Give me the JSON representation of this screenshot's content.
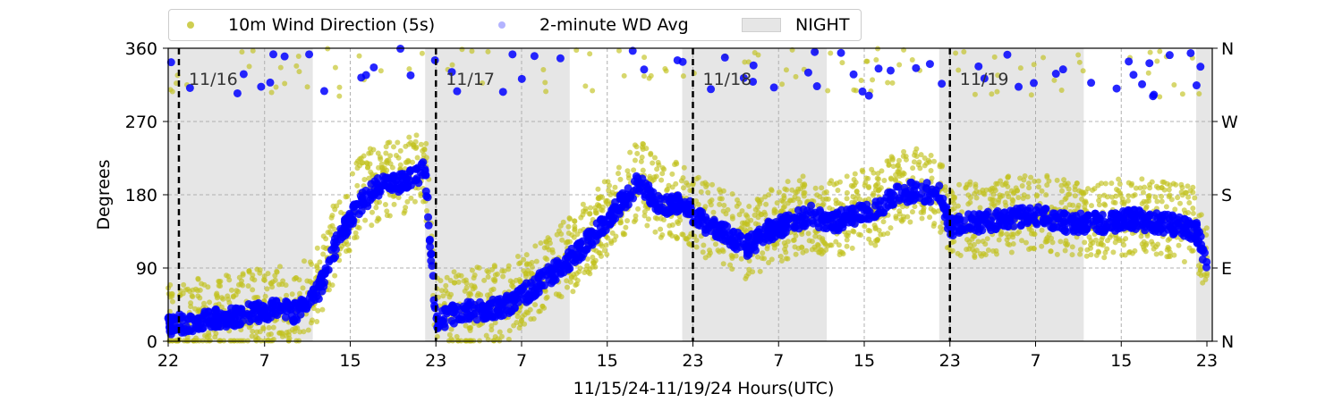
{
  "chart_data": {
    "type": "scatter",
    "title": "",
    "xlabel": "11/15/24-11/19/24  Hours(UTC)",
    "ylabel": "Degrees",
    "ylim": [
      0,
      360
    ],
    "yticks": [
      0,
      90,
      180,
      270,
      360
    ],
    "ytick_labels": [
      "0",
      "90",
      "180",
      "270",
      "360"
    ],
    "right_ticks": [
      0,
      90,
      180,
      270,
      360
    ],
    "right_tick_labels": [
      "N",
      "E",
      "S",
      "W",
      "N"
    ],
    "xlim_hours": [
      0,
      97.5
    ],
    "xticks_hours": [
      0,
      9,
      17,
      25,
      33,
      41,
      49,
      57,
      65,
      73,
      81,
      89,
      97
    ],
    "xtick_labels": [
      "22",
      "7",
      "15",
      "23",
      "7",
      "15",
      "23",
      "7",
      "15",
      "23",
      "7",
      "15",
      "23"
    ],
    "grid": true,
    "legend_placement": "top",
    "day_markers": [
      {
        "hour": 1,
        "label": "11/16"
      },
      {
        "hour": 25,
        "label": "11/17"
      },
      {
        "hour": 49,
        "label": "11/18"
      },
      {
        "hour": 73,
        "label": "11/19"
      }
    ],
    "night_periods": [
      [
        0,
        13.5
      ],
      [
        24,
        37.5
      ],
      [
        48,
        61.5
      ],
      [
        72,
        85.5
      ],
      [
        96,
        97.5
      ]
    ],
    "series": [
      {
        "name": "10m Wind Direction (5s)",
        "color": "#bfbf00",
        "trend": [
          [
            0,
            25
          ],
          [
            3,
            30
          ],
          [
            6,
            35
          ],
          [
            8,
            40
          ],
          [
            10,
            45
          ],
          [
            12,
            40
          ],
          [
            14,
            70
          ],
          [
            16,
            140
          ],
          [
            18,
            180
          ],
          [
            20,
            200
          ],
          [
            22,
            200
          ],
          [
            24,
            215
          ],
          [
            25,
            30
          ],
          [
            27,
            40
          ],
          [
            30,
            45
          ],
          [
            32,
            50
          ],
          [
            34,
            70
          ],
          [
            36,
            90
          ],
          [
            38,
            110
          ],
          [
            40,
            140
          ],
          [
            42,
            170
          ],
          [
            44,
            200
          ],
          [
            46,
            170
          ],
          [
            48,
            175
          ],
          [
            50,
            150
          ],
          [
            52,
            140
          ],
          [
            54,
            120
          ],
          [
            56,
            140
          ],
          [
            58,
            150
          ],
          [
            60,
            160
          ],
          [
            62,
            150
          ],
          [
            64,
            160
          ],
          [
            66,
            165
          ],
          [
            68,
            185
          ],
          [
            70,
            190
          ],
          [
            72,
            185
          ],
          [
            73,
            145
          ],
          [
            75,
            150
          ],
          [
            78,
            155
          ],
          [
            81,
            160
          ],
          [
            84,
            150
          ],
          [
            87,
            150
          ],
          [
            90,
            155
          ],
          [
            93,
            150
          ],
          [
            95,
            145
          ],
          [
            96,
            140
          ],
          [
            97,
            100
          ]
        ]
      },
      {
        "name": "2-minute WD Avg",
        "color": "#0000ff",
        "trend": [
          [
            0,
            20
          ],
          [
            3,
            25
          ],
          [
            6,
            30
          ],
          [
            8,
            35
          ],
          [
            10,
            40
          ],
          [
            12,
            35
          ],
          [
            14,
            60
          ],
          [
            16,
            130
          ],
          [
            18,
            170
          ],
          [
            20,
            195
          ],
          [
            22,
            195
          ],
          [
            24,
            210
          ],
          [
            25,
            25
          ],
          [
            27,
            35
          ],
          [
            30,
            40
          ],
          [
            32,
            45
          ],
          [
            34,
            65
          ],
          [
            36,
            85
          ],
          [
            38,
            105
          ],
          [
            40,
            135
          ],
          [
            42,
            165
          ],
          [
            44,
            195
          ],
          [
            46,
            165
          ],
          [
            48,
            170
          ],
          [
            50,
            145
          ],
          [
            52,
            135
          ],
          [
            54,
            115
          ],
          [
            56,
            135
          ],
          [
            58,
            145
          ],
          [
            60,
            155
          ],
          [
            62,
            145
          ],
          [
            64,
            155
          ],
          [
            66,
            160
          ],
          [
            68,
            180
          ],
          [
            70,
            185
          ],
          [
            72,
            180
          ],
          [
            73,
            140
          ],
          [
            75,
            145
          ],
          [
            78,
            150
          ],
          [
            81,
            155
          ],
          [
            84,
            145
          ],
          [
            87,
            145
          ],
          [
            90,
            150
          ],
          [
            93,
            145
          ],
          [
            95,
            140
          ],
          [
            96,
            135
          ],
          [
            97,
            95
          ]
        ]
      }
    ],
    "legend_patch": {
      "name": "NIGHT",
      "color": "#e6e6e6"
    }
  }
}
